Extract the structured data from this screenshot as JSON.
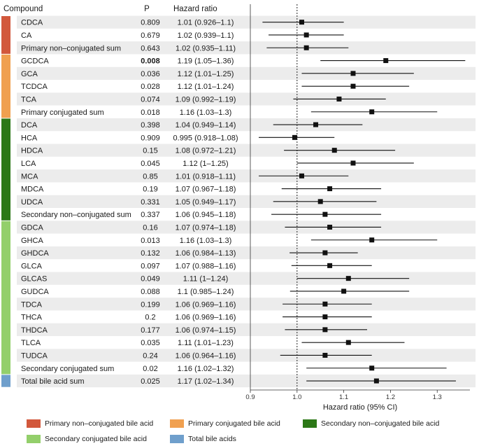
{
  "colors": {
    "primary_nonconj": "#d2583c",
    "primary_conj": "#f0a050",
    "secondary_nonconj": "#2c7817",
    "secondary_conj": "#93cf6b",
    "total": "#6f9fcc",
    "stripe": "#ececec",
    "ref_line": "#222222"
  },
  "table_headers": {
    "compound": "Compound",
    "p": "P",
    "hr": "Hazard ratio"
  },
  "chart_data": {
    "type": "forest",
    "xlabel": "Hazard ratio (95% CI)",
    "xlim": [
      0.9,
      1.37
    ],
    "xticks": [
      "0.9",
      "1.0",
      "1.1",
      "1.2",
      "1.3"
    ],
    "reference_line": 1.0,
    "rows": [
      {
        "compound": "CDCA",
        "p": "0.809",
        "hr_text": "1.01 (0.926–1.1)",
        "hr": 1.01,
        "lo": 0.926,
        "hi": 1.1,
        "group": "primary_nonconj",
        "bold_p": false
      },
      {
        "compound": "CA",
        "p": "0.679",
        "hr_text": "1.02 (0.939–1.1)",
        "hr": 1.02,
        "lo": 0.939,
        "hi": 1.1,
        "group": "primary_nonconj",
        "bold_p": false
      },
      {
        "compound": "Primary non–conjugated sum",
        "p": "0.643",
        "hr_text": "1.02 (0.935–1.11)",
        "hr": 1.02,
        "lo": 0.935,
        "hi": 1.11,
        "group": "primary_nonconj",
        "bold_p": false
      },
      {
        "compound": "GCDCA",
        "p": "0.008",
        "hr_text": "1.19 (1.05–1.36)",
        "hr": 1.19,
        "lo": 1.05,
        "hi": 1.36,
        "group": "primary_conj",
        "bold_p": true
      },
      {
        "compound": "GCA",
        "p": "0.036",
        "hr_text": "1.12 (1.01–1.25)",
        "hr": 1.12,
        "lo": 1.01,
        "hi": 1.25,
        "group": "primary_conj",
        "bold_p": false
      },
      {
        "compound": "TCDCA",
        "p": "0.028",
        "hr_text": "1.12 (1.01–1.24)",
        "hr": 1.12,
        "lo": 1.01,
        "hi": 1.24,
        "group": "primary_conj",
        "bold_p": false
      },
      {
        "compound": "TCA",
        "p": "0.074",
        "hr_text": "1.09 (0.992–1.19)",
        "hr": 1.09,
        "lo": 0.992,
        "hi": 1.19,
        "group": "primary_conj",
        "bold_p": false
      },
      {
        "compound": "Primary conjugated sum",
        "p": "0.018",
        "hr_text": "1.16 (1.03–1.3)",
        "hr": 1.16,
        "lo": 1.03,
        "hi": 1.3,
        "group": "primary_conj",
        "bold_p": false
      },
      {
        "compound": "DCA",
        "p": "0.398",
        "hr_text": "1.04 (0.949–1.14)",
        "hr": 1.04,
        "lo": 0.949,
        "hi": 1.14,
        "group": "secondary_nonconj",
        "bold_p": false
      },
      {
        "compound": "HCA",
        "p": "0.909",
        "hr_text": "0.995 (0.918–1.08)",
        "hr": 0.995,
        "lo": 0.918,
        "hi": 1.08,
        "group": "secondary_nonconj",
        "bold_p": false
      },
      {
        "compound": "HDCA",
        "p": "0.15",
        "hr_text": "1.08 (0.972–1.21)",
        "hr": 1.08,
        "lo": 0.972,
        "hi": 1.21,
        "group": "secondary_nonconj",
        "bold_p": false
      },
      {
        "compound": "LCA",
        "p": "0.045",
        "hr_text": "1.12 (1–1.25)",
        "hr": 1.12,
        "lo": 1.0,
        "hi": 1.25,
        "group": "secondary_nonconj",
        "bold_p": false
      },
      {
        "compound": "MCA",
        "p": "0.85",
        "hr_text": "1.01 (0.918–1.11)",
        "hr": 1.01,
        "lo": 0.918,
        "hi": 1.11,
        "group": "secondary_nonconj",
        "bold_p": false
      },
      {
        "compound": "MDCA",
        "p": "0.19",
        "hr_text": "1.07 (0.967–1.18)",
        "hr": 1.07,
        "lo": 0.967,
        "hi": 1.18,
        "group": "secondary_nonconj",
        "bold_p": false
      },
      {
        "compound": "UDCA",
        "p": "0.331",
        "hr_text": "1.05 (0.949–1.17)",
        "hr": 1.05,
        "lo": 0.949,
        "hi": 1.17,
        "group": "secondary_nonconj",
        "bold_p": false
      },
      {
        "compound": "Secondary non–conjugated sum",
        "p": "0.337",
        "hr_text": "1.06 (0.945–1.18)",
        "hr": 1.06,
        "lo": 0.945,
        "hi": 1.18,
        "group": "secondary_nonconj",
        "bold_p": false
      },
      {
        "compound": "GDCA",
        "p": "0.16",
        "hr_text": "1.07 (0.974–1.18)",
        "hr": 1.07,
        "lo": 0.974,
        "hi": 1.18,
        "group": "secondary_conj",
        "bold_p": false
      },
      {
        "compound": "GHCA",
        "p": "0.013",
        "hr_text": "1.16 (1.03–1.3)",
        "hr": 1.16,
        "lo": 1.03,
        "hi": 1.3,
        "group": "secondary_conj",
        "bold_p": false
      },
      {
        "compound": "GHDCA",
        "p": "0.132",
        "hr_text": "1.06 (0.984–1.13)",
        "hr": 1.06,
        "lo": 0.984,
        "hi": 1.13,
        "group": "secondary_conj",
        "bold_p": false
      },
      {
        "compound": "GLCA",
        "p": "0.097",
        "hr_text": "1.07 (0.988–1.16)",
        "hr": 1.07,
        "lo": 0.988,
        "hi": 1.16,
        "group": "secondary_conj",
        "bold_p": false
      },
      {
        "compound": "GLCAS",
        "p": "0.049",
        "hr_text": "1.11 (1–1.24)",
        "hr": 1.11,
        "lo": 1.0,
        "hi": 1.24,
        "group": "secondary_conj",
        "bold_p": false
      },
      {
        "compound": "GUDCA",
        "p": "0.088",
        "hr_text": "1.1 (0.985–1.24)",
        "hr": 1.1,
        "lo": 0.985,
        "hi": 1.24,
        "group": "secondary_conj",
        "bold_p": false
      },
      {
        "compound": "TDCA",
        "p": "0.199",
        "hr_text": "1.06 (0.969–1.16)",
        "hr": 1.06,
        "lo": 0.969,
        "hi": 1.16,
        "group": "secondary_conj",
        "bold_p": false
      },
      {
        "compound": "THCA",
        "p": "0.2",
        "hr_text": "1.06 (0.969–1.16)",
        "hr": 1.06,
        "lo": 0.969,
        "hi": 1.16,
        "group": "secondary_conj",
        "bold_p": false
      },
      {
        "compound": "THDCA",
        "p": "0.177",
        "hr_text": "1.06 (0.974–1.15)",
        "hr": 1.06,
        "lo": 0.974,
        "hi": 1.15,
        "group": "secondary_conj",
        "bold_p": false
      },
      {
        "compound": "TLCA",
        "p": "0.035",
        "hr_text": "1.11 (1.01–1.23)",
        "hr": 1.11,
        "lo": 1.01,
        "hi": 1.23,
        "group": "secondary_conj",
        "bold_p": false
      },
      {
        "compound": "TUDCA",
        "p": "0.24",
        "hr_text": "1.06 (0.964–1.16)",
        "hr": 1.06,
        "lo": 0.964,
        "hi": 1.16,
        "group": "secondary_conj",
        "bold_p": false
      },
      {
        "compound": "Secondary conjugated sum",
        "p": "0.02",
        "hr_text": "1.16 (1.02–1.32)",
        "hr": 1.16,
        "lo": 1.02,
        "hi": 1.32,
        "group": "secondary_conj",
        "bold_p": false
      },
      {
        "compound": "Total bile acid sum",
        "p": "0.025",
        "hr_text": "1.17 (1.02–1.34)",
        "hr": 1.17,
        "lo": 1.02,
        "hi": 1.34,
        "group": "total",
        "bold_p": false
      }
    ],
    "legend": [
      {
        "key": "primary_nonconj",
        "label": "Primary non–conjugated bile acid"
      },
      {
        "key": "primary_conj",
        "label": "Primary conjugated bile acid"
      },
      {
        "key": "secondary_nonconj",
        "label": "Secondary non–conjugated bile acid"
      },
      {
        "key": "secondary_conj",
        "label": "Secondary conjugated bile acid"
      },
      {
        "key": "total",
        "label": "Total bile acids"
      }
    ]
  }
}
